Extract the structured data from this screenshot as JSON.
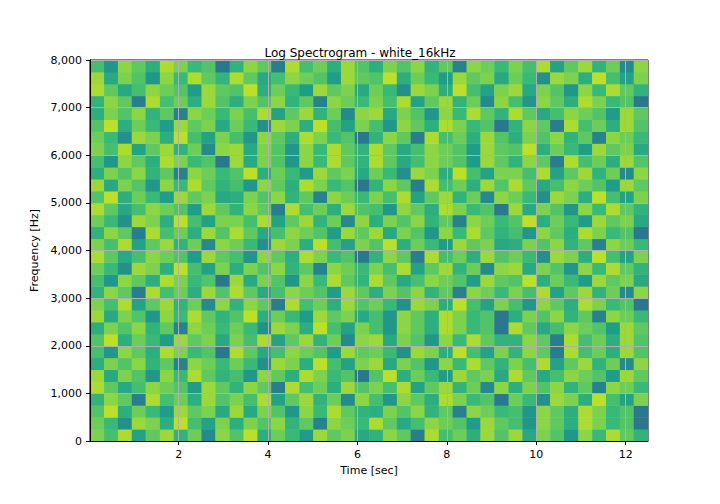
{
  "chart_data": {
    "type": "heatmap",
    "title": "Log Spectrogram - white_16kHz",
    "xlabel": "Time [sec]",
    "ylabel": "Frequency [Hz]",
    "xlim": [
      0.016,
      12.5
    ],
    "ylim": [
      0,
      8000
    ],
    "xticks": [
      2,
      4,
      6,
      8,
      10,
      12
    ],
    "yticks": [
      0,
      1000,
      2000,
      3000,
      4000,
      5000,
      6000,
      7000,
      8000
    ],
    "grid": true,
    "zlim": [
      -50,
      -10
    ],
    "x_edges": [
      0.016,
      0.33,
      0.64,
      0.95,
      1.26,
      1.58,
      1.89,
      2.2,
      2.51,
      2.82,
      3.14,
      3.45,
      3.76,
      4.07,
      4.38,
      4.7,
      5.01,
      5.32,
      5.63,
      5.94,
      6.26,
      6.57,
      6.88,
      7.19,
      7.5,
      7.82,
      8.13,
      8.44,
      8.75,
      9.06,
      9.38,
      9.69,
      10.0,
      10.31,
      10.62,
      10.94,
      11.25,
      11.56,
      11.87,
      12.18,
      12.5
    ],
    "y_edges": [
      0,
      250,
      500,
      750,
      1000,
      1250,
      1500,
      1750,
      2000,
      2250,
      2500,
      2750,
      3000,
      3250,
      3500,
      3750,
      4000,
      4250,
      4500,
      4750,
      5000,
      5250,
      5500,
      5750,
      6000,
      6250,
      6500,
      6750,
      7000,
      7250,
      7500,
      7750,
      8000
    ],
    "cells": [
      [
        -18,
        -22,
        -15,
        -27,
        -20,
        -16,
        -24,
        -19,
        -31,
        -17,
        -21,
        -14,
        -25,
        -19,
        -23,
        -28,
        -16,
        -20,
        -18,
        -26,
        -24,
        -17,
        -20,
        -33,
        -15,
        -22,
        -19,
        -25,
        -16,
        -21,
        -16,
        -26,
        -18,
        -21,
        -29,
        -17,
        -23,
        -15,
        -20,
        -24
      ],
      [
        -19,
        -23,
        -30,
        -16,
        -18,
        -25,
        -14,
        -22,
        -27,
        -18,
        -25,
        -18,
        -21,
        -17,
        -24,
        -20,
        -32,
        -17,
        -19,
        -23,
        -15,
        -20,
        -26,
        -22,
        -17,
        -19,
        -21,
        -28,
        -16,
        -20,
        -22,
        -29,
        -17,
        -20,
        -25,
        -15,
        -18,
        -23,
        -21,
        -34
      ],
      [
        -21,
        -14,
        -25,
        -19,
        -23,
        -28,
        -16,
        -20,
        -18,
        -26,
        -16,
        -26,
        -18,
        -21,
        -29,
        -17,
        -23,
        -15,
        -20,
        -24,
        -25,
        -18,
        -21,
        -17,
        -24,
        -20,
        -32,
        -17,
        -19,
        -23,
        -22,
        -29,
        -17,
        -20,
        -25,
        -15,
        -18,
        -23,
        -21,
        -34
      ],
      [
        -24,
        -17,
        -20,
        -33,
        -15,
        -22,
        -19,
        -25,
        -16,
        -21,
        -18,
        -22,
        -15,
        -27,
        -20,
        -16,
        -24,
        -19,
        -31,
        -17,
        -22,
        -29,
        -17,
        -20,
        -25,
        -15,
        -18,
        -23,
        -21,
        -34,
        -19,
        -23,
        -30,
        -16,
        -18,
        -25,
        -14,
        -22,
        -27,
        -18
      ],
      [
        -15,
        -20,
        -26,
        -22,
        -17,
        -19,
        -21,
        -28,
        -16,
        -20,
        -24,
        -17,
        -20,
        -33,
        -15,
        -22,
        -19,
        -25,
        -16,
        -21,
        -18,
        -22,
        -15,
        -27,
        -20,
        -16,
        -24,
        -19,
        -31,
        -17,
        -25,
        -18,
        -21,
        -17,
        -24,
        -20,
        -32,
        -17,
        -19,
        -23
      ],
      [
        -16,
        -26,
        -18,
        -21,
        -29,
        -17,
        -23,
        -15,
        -20,
        -24,
        -22,
        -29,
        -17,
        -20,
        -25,
        -15,
        -18,
        -23,
        -21,
        -34,
        -21,
        -14,
        -25,
        -19,
        -23,
        -28,
        -16,
        -20,
        -18,
        -26,
        -15,
        -20,
        -26,
        -22,
        -17,
        -19,
        -21,
        -28,
        -16,
        -20
      ],
      [
        -25,
        -18,
        -21,
        -17,
        -24,
        -20,
        -32,
        -17,
        -19,
        -23,
        -19,
        -23,
        -30,
        -16,
        -18,
        -25,
        -14,
        -22,
        -27,
        -18,
        -16,
        -26,
        -18,
        -21,
        -29,
        -17,
        -23,
        -15,
        -20,
        -24,
        -18,
        -22,
        -15,
        -27,
        -20,
        -16,
        -24,
        -19,
        -31,
        -17
      ],
      [
        -22,
        -29,
        -17,
        -20,
        -25,
        -15,
        -18,
        -23,
        -21,
        -34,
        -15,
        -20,
        -26,
        -22,
        -17,
        -19,
        -21,
        -28,
        -16,
        -20,
        -19,
        -23,
        -30,
        -16,
        -18,
        -25,
        -14,
        -22,
        -27,
        -18,
        -24,
        -17,
        -20,
        -33,
        -15,
        -22,
        -19,
        -25,
        -16,
        -21
      ],
      [
        -21,
        -14,
        -25,
        -19,
        -23,
        -28,
        -16,
        -20,
        -18,
        -26,
        -18,
        -22,
        -15,
        -27,
        -20,
        -16,
        -24,
        -19,
        -31,
        -17,
        -16,
        -26,
        -18,
        -21,
        -29,
        -17,
        -23,
        -15,
        -20,
        -24,
        -24,
        -17,
        -20,
        -33,
        -15,
        -22,
        -19,
        -25,
        -16,
        -21
      ],
      [
        -25,
        -18,
        -21,
        -17,
        -24,
        -20,
        -32,
        -17,
        -19,
        -23,
        -19,
        -23,
        -30,
        -16,
        -18,
        -25,
        -14,
        -22,
        -27,
        -18,
        -22,
        -29,
        -17,
        -20,
        -25,
        -15,
        -18,
        -23,
        -21,
        -34,
        -15,
        -20,
        -26,
        -22,
        -17,
        -19,
        -21,
        -28,
        -16,
        -20
      ],
      [
        -16,
        -26,
        -18,
        -21,
        -29,
        -17,
        -23,
        -15,
        -20,
        -24,
        -21,
        -14,
        -25,
        -19,
        -23,
        -28,
        -16,
        -20,
        -18,
        -26,
        -22,
        -29,
        -17,
        -20,
        -25,
        -15,
        -18,
        -23,
        -21,
        -34,
        -25,
        -18,
        -21,
        -17,
        -24,
        -20,
        -32,
        -17,
        -19,
        -23
      ],
      [
        -18,
        -22,
        -15,
        -27,
        -20,
        -16,
        -24,
        -19,
        -31,
        -17,
        -24,
        -17,
        -20,
        -33,
        -15,
        -22,
        -19,
        -25,
        -16,
        -21,
        -19,
        -23,
        -30,
        -16,
        -18,
        -25,
        -14,
        -22,
        -27,
        -18,
        -22,
        -29,
        -17,
        -20,
        -25,
        -15,
        -18,
        -23,
        -21,
        -34
      ],
      [
        -24,
        -17,
        -20,
        -33,
        -15,
        -22,
        -19,
        -25,
        -16,
        -21,
        -15,
        -20,
        -26,
        -22,
        -17,
        -19,
        -21,
        -28,
        -16,
        -20,
        -25,
        -18,
        -21,
        -17,
        -24,
        -20,
        -32,
        -17,
        -19,
        -23,
        -18,
        -22,
        -15,
        -27,
        -20,
        -16,
        -24,
        -19,
        -31,
        -17
      ],
      [
        -22,
        -29,
        -17,
        -20,
        -25,
        -15,
        -18,
        -23,
        -21,
        -34,
        -16,
        -26,
        -18,
        -21,
        -29,
        -17,
        -23,
        -15,
        -20,
        -24,
        -15,
        -20,
        -26,
        -22,
        -17,
        -19,
        -21,
        -28,
        -16,
        -20,
        -21,
        -14,
        -25,
        -19,
        -23,
        -28,
        -16,
        -20,
        -18,
        -26
      ],
      [
        -19,
        -23,
        -30,
        -16,
        -18,
        -25,
        -14,
        -22,
        -27,
        -18,
        -25,
        -18,
        -21,
        -17,
        -24,
        -20,
        -32,
        -17,
        -19,
        -23,
        -18,
        -22,
        -15,
        -27,
        -20,
        -16,
        -24,
        -19,
        -31,
        -17,
        -16,
        -26,
        -18,
        -21,
        -29,
        -17,
        -23,
        -15,
        -20,
        -24
      ],
      [
        -15,
        -20,
        -26,
        -22,
        -17,
        -19,
        -21,
        -28,
        -16,
        -20,
        -22,
        -29,
        -17,
        -20,
        -25,
        -15,
        -18,
        -23,
        -21,
        -34,
        -24,
        -17,
        -20,
        -33,
        -15,
        -22,
        -19,
        -25,
        -16,
        -21,
        -19,
        -23,
        -30,
        -16,
        -18,
        -25,
        -14,
        -22,
        -27,
        -18
      ],
      [
        -18,
        -22,
        -15,
        -27,
        -20,
        -16,
        -24,
        -19,
        -31,
        -17,
        -19,
        -23,
        -30,
        -16,
        -18,
        -25,
        -14,
        -22,
        -27,
        -18,
        -21,
        -14,
        -25,
        -19,
        -23,
        -28,
        -16,
        -20,
        -18,
        -26,
        -25,
        -18,
        -21,
        -17,
        -24,
        -20,
        -32,
        -17,
        -19,
        -23
      ],
      [
        -24,
        -17,
        -20,
        -33,
        -15,
        -22,
        -19,
        -25,
        -16,
        -21,
        -15,
        -20,
        -26,
        -22,
        -17,
        -19,
        -21,
        -28,
        -16,
        -20,
        -16,
        -26,
        -18,
        -21,
        -29,
        -17,
        -23,
        -15,
        -20,
        -24,
        -22,
        -29,
        -17,
        -20,
        -25,
        -15,
        -18,
        -23,
        -21,
        -34
      ],
      [
        -19,
        -23,
        -30,
        -16,
        -18,
        -25,
        -14,
        -22,
        -27,
        -18,
        -18,
        -22,
        -15,
        -27,
        -20,
        -16,
        -24,
        -19,
        -31,
        -17,
        -25,
        -18,
        -21,
        -17,
        -24,
        -20,
        -32,
        -17,
        -19,
        -23,
        -21,
        -14,
        -25,
        -19,
        -23,
        -28,
        -16,
        -20,
        -18,
        -26
      ],
      [
        -15,
        -20,
        -26,
        -22,
        -17,
        -19,
        -21,
        -28,
        -16,
        -20,
        -24,
        -17,
        -20,
        -33,
        -15,
        -22,
        -19,
        -25,
        -16,
        -21,
        -22,
        -29,
        -17,
        -20,
        -25,
        -15,
        -18,
        -23,
        -21,
        -34,
        -16,
        -26,
        -18,
        -21,
        -29,
        -17,
        -23,
        -15,
        -20,
        -24
      ],
      [
        -21,
        -14,
        -25,
        -19,
        -23,
        -28,
        -16,
        -20,
        -18,
        -26,
        -25,
        -18,
        -21,
        -17,
        -24,
        -20,
        -32,
        -17,
        -19,
        -23,
        -18,
        -22,
        -15,
        -27,
        -20,
        -16,
        -24,
        -19,
        -31,
        -17,
        -19,
        -23,
        -30,
        -16,
        -18,
        -25,
        -14,
        -22,
        -27,
        -18
      ],
      [
        -16,
        -26,
        -18,
        -21,
        -29,
        -17,
        -23,
        -15,
        -20,
        -24,
        -22,
        -29,
        -17,
        -20,
        -25,
        -15,
        -18,
        -23,
        -21,
        -34,
        -24,
        -17,
        -20,
        -33,
        -15,
        -22,
        -19,
        -25,
        -16,
        -21,
        -15,
        -20,
        -26,
        -22,
        -17,
        -19,
        -21,
        -28,
        -16,
        -20
      ],
      [
        -25,
        -18,
        -21,
        -17,
        -24,
        -20,
        -32,
        -17,
        -19,
        -23,
        -21,
        -14,
        -25,
        -19,
        -23,
        -28,
        -16,
        -20,
        -18,
        -26,
        -19,
        -23,
        -30,
        -16,
        -18,
        -25,
        -14,
        -22,
        -27,
        -18,
        -18,
        -22,
        -15,
        -27,
        -20,
        -16,
        -24,
        -19,
        -31,
        -17
      ],
      [
        -22,
        -29,
        -17,
        -20,
        -25,
        -15,
        -18,
        -23,
        -21,
        -34,
        -16,
        -26,
        -18,
        -21,
        -29,
        -17,
        -23,
        -15,
        -20,
        -24,
        -15,
        -20,
        -26,
        -22,
        -17,
        -19,
        -21,
        -28,
        -16,
        -20,
        -24,
        -17,
        -20,
        -33,
        -15,
        -22,
        -19,
        -25,
        -16,
        -21
      ],
      [
        -18,
        -22,
        -15,
        -27,
        -20,
        -16,
        -24,
        -19,
        -31,
        -17,
        -16,
        -26,
        -18,
        -21,
        -29,
        -17,
        -23,
        -15,
        -20,
        -24,
        -15,
        -20,
        -26,
        -22,
        -17,
        -19,
        -21,
        -28,
        -16,
        -20,
        -21,
        -14,
        -25,
        -19,
        -23,
        -28,
        -16,
        -20,
        -18,
        -26
      ],
      [
        -19,
        -23,
        -30,
        -16,
        -18,
        -25,
        -14,
        -22,
        -27,
        -18,
        -22,
        -29,
        -17,
        -20,
        -25,
        -15,
        -18,
        -23,
        -21,
        -34,
        -24,
        -17,
        -20,
        -33,
        -15,
        -22,
        -19,
        -25,
        -16,
        -21,
        -25,
        -18,
        -21,
        -17,
        -24,
        -20,
        -32,
        -17,
        -19,
        -23
      ],
      [
        -21,
        -14,
        -25,
        -19,
        -23,
        -28,
        -16,
        -20,
        -18,
        -26,
        -19,
        -23,
        -30,
        -16,
        -18,
        -25,
        -14,
        -22,
        -27,
        -18,
        -22,
        -29,
        -17,
        -20,
        -25,
        -15,
        -18,
        -23,
        -21,
        -34,
        -24,
        -17,
        -20,
        -33,
        -15,
        -22,
        -19,
        -25,
        -16,
        -21
      ],
      [
        -25,
        -18,
        -21,
        -17,
        -24,
        -20,
        -32,
        -17,
        -19,
        -23,
        -18,
        -22,
        -15,
        -27,
        -20,
        -16,
        -24,
        -19,
        -31,
        -17,
        -16,
        -26,
        -18,
        -21,
        -29,
        -17,
        -23,
        -15,
        -20,
        -24,
        -15,
        -20,
        -26,
        -22,
        -17,
        -19,
        -21,
        -28,
        -16,
        -20
      ],
      [
        -24,
        -17,
        -20,
        -33,
        -15,
        -22,
        -19,
        -25,
        -16,
        -21,
        -25,
        -18,
        -21,
        -17,
        -24,
        -20,
        -32,
        -17,
        -19,
        -23,
        -18,
        -22,
        -15,
        -27,
        -20,
        -16,
        -24,
        -19,
        -31,
        -17,
        -22,
        -29,
        -17,
        -20,
        -25,
        -15,
        -18,
        -23,
        -21,
        -34
      ],
      [
        -15,
        -20,
        -26,
        -22,
        -17,
        -19,
        -21,
        -28,
        -16,
        -20,
        -21,
        -14,
        -25,
        -19,
        -23,
        -28,
        -16,
        -20,
        -18,
        -26,
        -19,
        -23,
        -30,
        -16,
        -18,
        -25,
        -14,
        -22,
        -27,
        -18,
        -16,
        -26,
        -18,
        -21,
        -29,
        -17,
        -23,
        -15,
        -20,
        -24
      ],
      [
        -16,
        -26,
        -18,
        -21,
        -29,
        -17,
        -23,
        -15,
        -20,
        -24,
        -15,
        -20,
        -26,
        -22,
        -17,
        -19,
        -21,
        -28,
        -16,
        -20,
        -21,
        -14,
        -25,
        -19,
        -23,
        -28,
        -16,
        -20,
        -18,
        -26,
        -19,
        -23,
        -30,
        -16,
        -18,
        -25,
        -14,
        -22,
        -27,
        -18
      ],
      [
        -22,
        -29,
        -17,
        -20,
        -25,
        -15,
        -18,
        -23,
        -21,
        -34,
        -24,
        -17,
        -20,
        -33,
        -15,
        -22,
        -19,
        -25,
        -16,
        -21,
        -25,
        -18,
        -21,
        -17,
        -24,
        -20,
        -32,
        -17,
        -19,
        -23,
        -18,
        -22,
        -15,
        -27,
        -20,
        -16,
        -24,
        -19,
        -31,
        -17
      ]
    ]
  }
}
